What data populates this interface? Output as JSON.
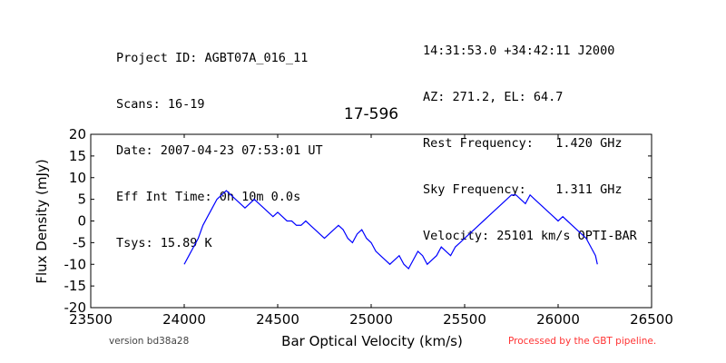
{
  "header": {
    "left_lines": [
      "Project ID: AGBT07A_016_11",
      "Scans: 16-19",
      "Date: 2007-04-23 07:53:01 UT",
      "Eff Int Time: 0h 10m 0.0s",
      "Tsys: 15.89 K"
    ],
    "right_lines": [
      "14:31:53.0 +34:42:11 J2000",
      "AZ: 271.2, EL: 64.7",
      "Rest Frequency:   1.420 GHz",
      "Sky Frequency:    1.311 GHz",
      "Velocity: 25101 km/s OPTI-BAR"
    ]
  },
  "footer": {
    "version": "version bd38a28",
    "pipeline": "Processed by the GBT pipeline.",
    "pipeline_color": "#ff3333"
  },
  "chart_data": {
    "type": "line",
    "title": "17-596",
    "xlabel": "Bar Optical Velocity (km/s)",
    "ylabel": "Flux Density (mJy)",
    "xlim": [
      23500,
      26500
    ],
    "ylim": [
      -20,
      20
    ],
    "xticks": [
      23500,
      24000,
      24500,
      25000,
      25500,
      26000,
      26500
    ],
    "yticks": [
      -20,
      -15,
      -10,
      -5,
      0,
      5,
      10,
      15,
      20
    ],
    "grid": false,
    "line_color": "#0000ff",
    "series": [
      {
        "x": [
          24000,
          24025,
          24050,
          24075,
          24100,
          24125,
          24150,
          24175,
          24200,
          24225,
          24250,
          24275,
          24300,
          24325,
          24350,
          24375,
          24400,
          24425,
          24450,
          24475,
          24500,
          24525,
          24550,
          24575,
          24600,
          24625,
          24650,
          24675,
          24700,
          24725,
          24750,
          24775,
          24800,
          24825,
          24850,
          24875,
          24900,
          24925,
          24950,
          24975,
          25000,
          25025,
          25050,
          25075,
          25100,
          25125,
          25150,
          25175,
          25200,
          25225,
          25250,
          25275,
          25300,
          25325,
          25350,
          25375,
          25400,
          25425,
          25450,
          25475,
          25500,
          25525,
          25550,
          25575,
          25600,
          25625,
          25650,
          25675,
          25700,
          25725,
          25750,
          25775,
          25800,
          25825,
          25850,
          25875,
          25900,
          25925,
          25950,
          25975,
          26000,
          26025,
          26050,
          26075,
          26100,
          26125,
          26150,
          26175,
          26200,
          26210
        ],
        "y": [
          -10,
          -8,
          -6,
          -4,
          -1,
          1,
          3,
          5,
          6,
          7,
          6,
          5,
          4,
          3,
          4,
          5,
          4,
          3,
          2,
          1,
          2,
          1,
          0,
          0,
          -1,
          -1,
          0,
          -1,
          -2,
          -3,
          -4,
          -3,
          -2,
          -1,
          -2,
          -4,
          -5,
          -3,
          -2,
          -4,
          -5,
          -7,
          -8,
          -9,
          -10,
          -9,
          -8,
          -10,
          -11,
          -9,
          -7,
          -8,
          -10,
          -9,
          -8,
          -6,
          -7,
          -8,
          -6,
          -5,
          -4,
          -3,
          -2,
          -1,
          0,
          1,
          2,
          3,
          4,
          5,
          6,
          6,
          5,
          4,
          6,
          5,
          4,
          3,
          2,
          1,
          0,
          1,
          0,
          -1,
          -2,
          -3,
          -4,
          -6,
          -8,
          -10
        ]
      }
    ]
  }
}
